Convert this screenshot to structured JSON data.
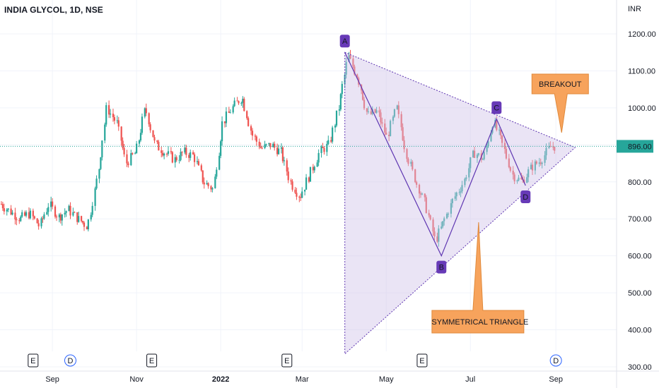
{
  "header": {
    "title": "INDIA GLYCOL, 1D, NSE"
  },
  "colors": {
    "up": "#26a69a",
    "down": "#ef5350",
    "pattern_fill": "#d1c4e9",
    "pattern_stroke": "#5e35b1",
    "label_bg": "#673ab7",
    "callout_bg": "#f7a35c",
    "price_line": "#26a69a",
    "grid": "#f0f3fa"
  },
  "chart_data": {
    "type": "candlestick",
    "currency_label": "INR",
    "y_ticks": [
      "1200.00",
      "1100.00",
      "1000.00",
      "900.00",
      "800.00",
      "700.00",
      "600.00",
      "500.00",
      "400.00",
      "300.00"
    ],
    "y_tick_values": [
      1200,
      1100,
      1000,
      900,
      800,
      700,
      600,
      500,
      400,
      300
    ],
    "ylim": [
      290,
      1230
    ],
    "x_ticks": [
      {
        "label": "Sep",
        "date": "2021-09-01",
        "bold": false
      },
      {
        "label": "Nov",
        "date": "2021-11-01",
        "bold": false
      },
      {
        "label": "2022",
        "date": "2022-01-01",
        "bold": true
      },
      {
        "label": "Mar",
        "date": "2022-03-01",
        "bold": false
      },
      {
        "label": "May",
        "date": "2022-05-01",
        "bold": false
      },
      {
        "label": "Jul",
        "date": "2022-07-01",
        "bold": false
      },
      {
        "label": "Sep",
        "date": "2022-09-01",
        "bold": false
      }
    ],
    "xlim": [
      "2021-07-25",
      "2022-10-15"
    ],
    "last_price": "896.00",
    "last_price_value": 896,
    "closes": [
      {
        "date": "2021-07-26",
        "close": 740
      },
      {
        "date": "2021-08-02",
        "close": 720
      },
      {
        "date": "2021-08-09",
        "close": 700
      },
      {
        "date": "2021-08-16",
        "close": 715
      },
      {
        "date": "2021-08-23",
        "close": 680
      },
      {
        "date": "2021-08-30",
        "close": 740
      },
      {
        "date": "2021-09-06",
        "close": 705
      },
      {
        "date": "2021-09-13",
        "close": 725
      },
      {
        "date": "2021-09-20",
        "close": 700
      },
      {
        "date": "2021-09-27",
        "close": 680
      },
      {
        "date": "2021-10-04",
        "close": 810
      },
      {
        "date": "2021-10-11",
        "close": 1000
      },
      {
        "date": "2021-10-18",
        "close": 960
      },
      {
        "date": "2021-10-25",
        "close": 850
      },
      {
        "date": "2021-11-01",
        "close": 880
      },
      {
        "date": "2021-11-08",
        "close": 1000
      },
      {
        "date": "2021-11-15",
        "close": 900
      },
      {
        "date": "2021-11-22",
        "close": 880
      },
      {
        "date": "2021-11-29",
        "close": 860
      },
      {
        "date": "2021-12-06",
        "close": 880
      },
      {
        "date": "2021-12-13",
        "close": 870
      },
      {
        "date": "2021-12-20",
        "close": 800
      },
      {
        "date": "2021-12-27",
        "close": 780
      },
      {
        "date": "2022-01-03",
        "close": 960
      },
      {
        "date": "2022-01-10",
        "close": 1000
      },
      {
        "date": "2022-01-17",
        "close": 1030
      },
      {
        "date": "2022-01-24",
        "close": 930
      },
      {
        "date": "2022-01-31",
        "close": 890
      },
      {
        "date": "2022-02-07",
        "close": 900
      },
      {
        "date": "2022-02-14",
        "close": 880
      },
      {
        "date": "2022-02-21",
        "close": 800
      },
      {
        "date": "2022-02-28",
        "close": 760
      },
      {
        "date": "2022-03-07",
        "close": 820
      },
      {
        "date": "2022-03-14",
        "close": 880
      },
      {
        "date": "2022-03-21",
        "close": 900
      },
      {
        "date": "2022-03-28",
        "close": 1000
      },
      {
        "date": "2022-04-04",
        "close": 1140
      },
      {
        "date": "2022-04-11",
        "close": 1080
      },
      {
        "date": "2022-04-18",
        "close": 980
      },
      {
        "date": "2022-04-25",
        "close": 990
      },
      {
        "date": "2022-05-02",
        "close": 920
      },
      {
        "date": "2022-05-09",
        "close": 1000
      },
      {
        "date": "2022-05-16",
        "close": 880
      },
      {
        "date": "2022-05-23",
        "close": 800
      },
      {
        "date": "2022-05-30",
        "close": 740
      },
      {
        "date": "2022-06-06",
        "close": 640
      },
      {
        "date": "2022-06-13",
        "close": 700
      },
      {
        "date": "2022-06-20",
        "close": 760
      },
      {
        "date": "2022-06-27",
        "close": 800
      },
      {
        "date": "2022-07-04",
        "close": 880
      },
      {
        "date": "2022-07-11",
        "close": 860
      },
      {
        "date": "2022-07-18",
        "close": 965
      },
      {
        "date": "2022-07-25",
        "close": 900
      },
      {
        "date": "2022-08-01",
        "close": 820
      },
      {
        "date": "2022-08-08",
        "close": 800
      },
      {
        "date": "2022-08-15",
        "close": 840
      },
      {
        "date": "2022-08-22",
        "close": 860
      },
      {
        "date": "2022-08-29",
        "close": 896
      }
    ],
    "pattern": {
      "name": "SYMMETRICAL TRIANGLE",
      "points": [
        {
          "label": "A",
          "date": "2022-04-01",
          "price": 1150
        },
        {
          "label": "B",
          "date": "2022-06-10",
          "price": 600
        },
        {
          "label": "C",
          "date": "2022-07-20",
          "price": 970
        },
        {
          "label": "D",
          "date": "2022-08-10",
          "price": 790
        }
      ],
      "apex": {
        "date": "2022-09-15",
        "price": 893
      },
      "lower_anchor": {
        "date": "2022-04-01",
        "price": 335
      }
    },
    "callouts": {
      "breakout": "BREAKOUT",
      "triangle": "SYMMETRICAL TRIANGLE"
    },
    "events": [
      {
        "type": "E",
        "date": "2021-08-18"
      },
      {
        "type": "D",
        "date": "2021-09-14"
      },
      {
        "type": "E",
        "date": "2021-11-12"
      },
      {
        "type": "E",
        "date": "2022-02-18"
      },
      {
        "type": "E",
        "date": "2022-05-27"
      },
      {
        "type": "D",
        "date": "2022-09-01"
      }
    ]
  }
}
